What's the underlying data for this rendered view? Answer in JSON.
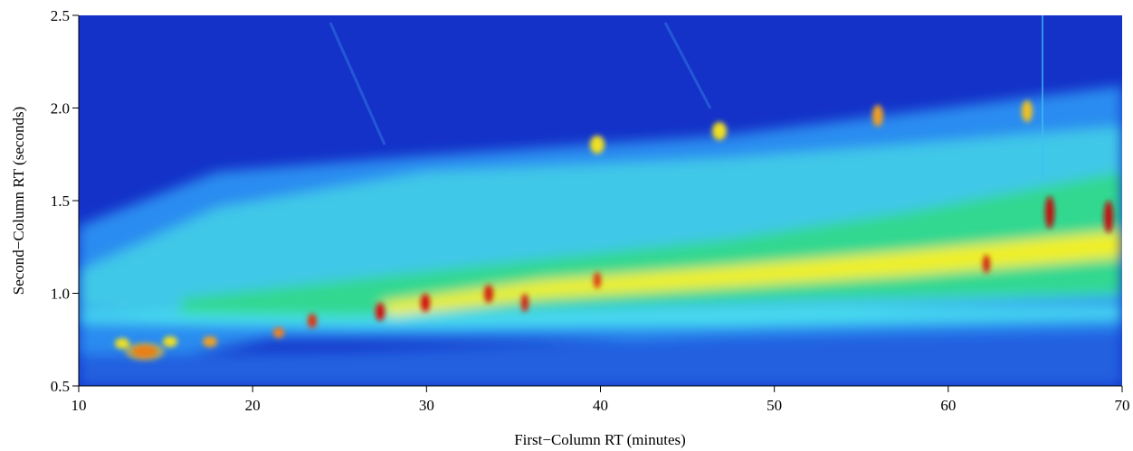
{
  "chart_data": {
    "type": "heatmap",
    "xlabel": "First−Column RT (minutes)",
    "ylabel": "Second−Column RT (seconds)",
    "xlim": [
      10,
      70
    ],
    "xticks": [
      10,
      20,
      30,
      40,
      50,
      60,
      70
    ],
    "ylim": [
      0.5,
      2.5
    ],
    "yticks": [
      0.5,
      {
        "value": 1,
        "label": "1.0"
      },
      1.5,
      {
        "value": 2,
        "label": "2.0"
      },
      2.5
    ]
  }
}
